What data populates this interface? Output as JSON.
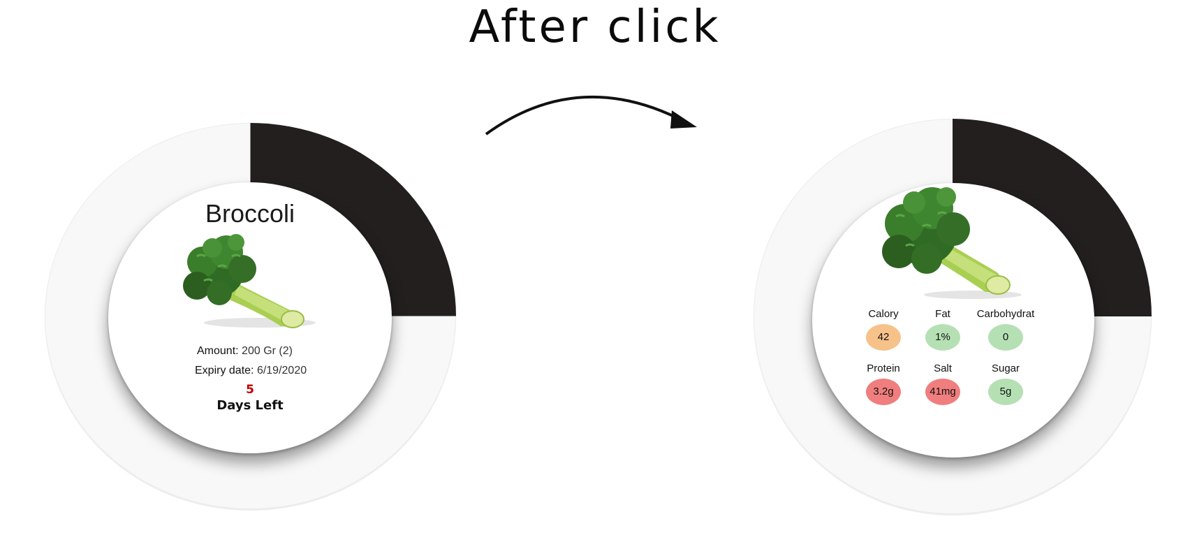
{
  "heading": "After click",
  "colors": {
    "ring_progress": "#231f1f",
    "ring_track": "#f8f8f8",
    "days_left": "#c00000",
    "badge_orange": "#f6c28a",
    "badge_green": "#b5e0b3",
    "badge_red": "#f07e7e"
  },
  "cards": {
    "before": {
      "title": "Broccoli",
      "image": "broccoli-image",
      "remaining_fraction": 0.25,
      "amount_label": "Amount:",
      "amount_value": "200 Gr (2)",
      "expiry_label": "Expiry date:",
      "expiry_value": "6/19/2020",
      "days_left_value": "5",
      "days_left_label": "Days Left"
    },
    "after": {
      "image": "broccoli-image",
      "remaining_fraction": 0.25,
      "nutrients": [
        {
          "label": "Calory",
          "value": "42",
          "level": "orange"
        },
        {
          "label": "Fat",
          "value": "1%",
          "level": "green"
        },
        {
          "label": "Carbohydrat",
          "value": "0",
          "level": "green"
        },
        {
          "label": "Protein",
          "value": "3.2g",
          "level": "red"
        },
        {
          "label": "Salt",
          "value": "41mg",
          "level": "red"
        },
        {
          "label": "Sugar",
          "value": "5g",
          "level": "green"
        }
      ]
    }
  },
  "transition_icon": "curved-arrow-icon"
}
